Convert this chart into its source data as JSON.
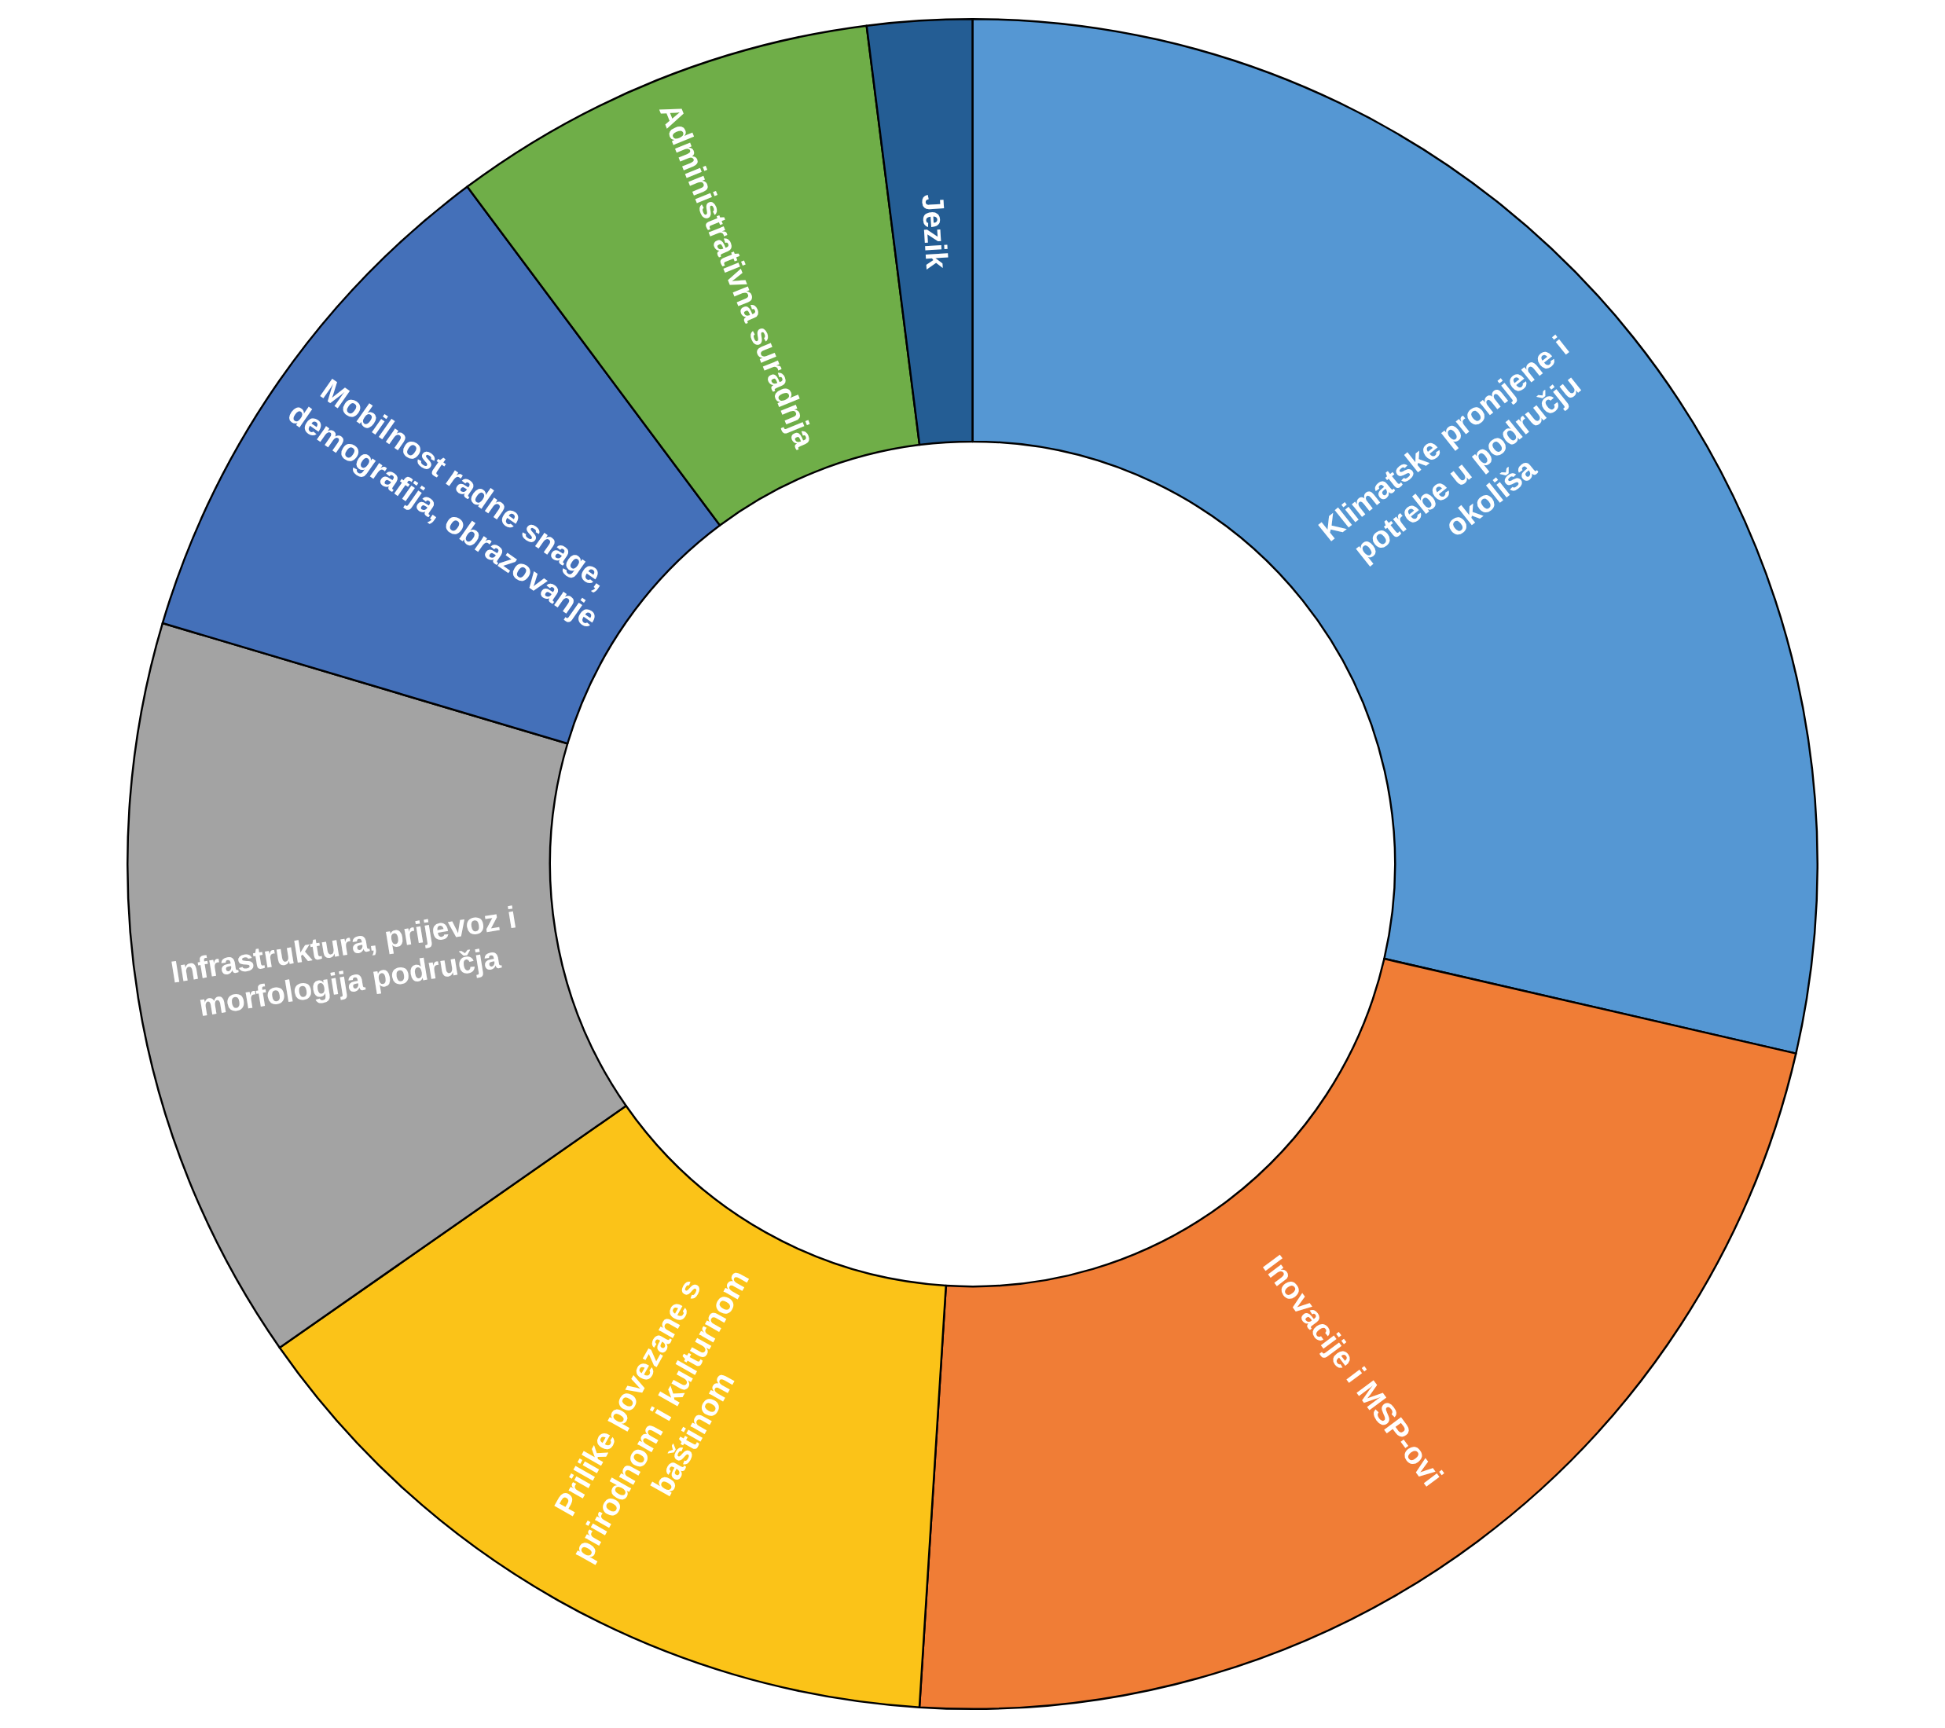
{
  "chart_data": {
    "type": "donut",
    "categories": [
      "Klimatske promjene i potrebe u području okoliša",
      "Inovacije i MSP-ovi",
      "Prilike povezane s prirodnom i kulturnom baštinom",
      "Infrastruktura, prijevoz i morfologija područja",
      "Mobilnost radne snage, demografija, obrazovanje",
      "Administrativna suradnja",
      "Jezik"
    ],
    "values": [
      28.6,
      22.4,
      14.3,
      14.3,
      10.2,
      8.2,
      2.0
    ],
    "colors": [
      "#5597d3",
      "#f07d36",
      "#fbc318",
      "#a3a3a3",
      "#4470b9",
      "#6fae48",
      "#245d94"
    ]
  }
}
